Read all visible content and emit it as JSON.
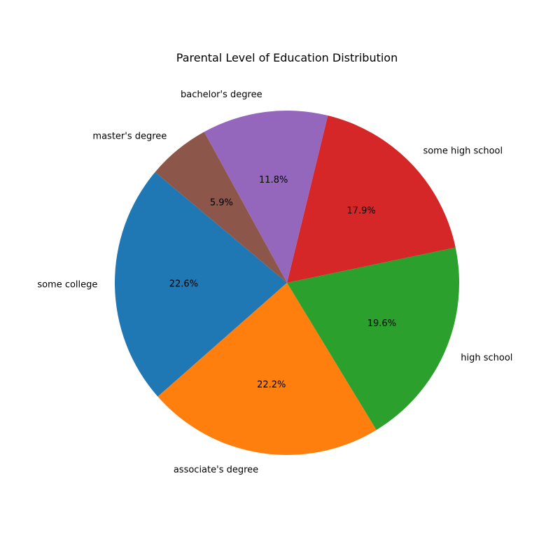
{
  "chart_data": {
    "type": "pie",
    "title": "Parental Level of Education Distribution",
    "start_angle_deg": 140,
    "direction": "counterclockwise",
    "slices": [
      {
        "label": "some college",
        "value": 22.6,
        "pct_label": "22.6%",
        "color": "#1f77b4"
      },
      {
        "label": "associate's degree",
        "value": 22.2,
        "pct_label": "22.2%",
        "color": "#ff7f0e"
      },
      {
        "label": "high school",
        "value": 19.6,
        "pct_label": "19.6%",
        "color": "#2ca02c"
      },
      {
        "label": "some high school",
        "value": 17.9,
        "pct_label": "17.9%",
        "color": "#d62728"
      },
      {
        "label": "bachelor's degree",
        "value": 11.8,
        "pct_label": "11.8%",
        "color": "#9467bd"
      },
      {
        "label": "master's degree",
        "value": 5.9,
        "pct_label": "5.9%",
        "color": "#8c564b"
      }
    ]
  }
}
